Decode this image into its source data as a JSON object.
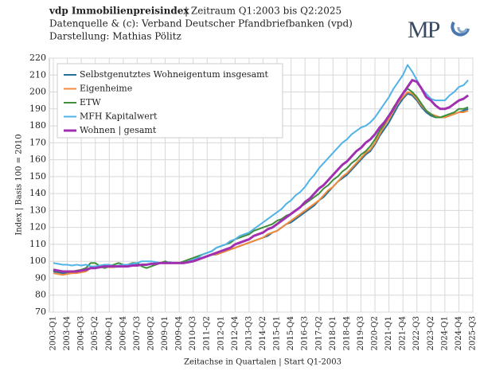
{
  "chart_data": {
    "type": "line",
    "title": "vdp Immobilienpreisindex",
    "title_suffix": "| Zeitraum Q1:2003 bis Q2:2025",
    "subtitle": [
      "Datenquelle & (c): Verband Deutscher Pfandbriefbanken (vpd)",
      "Darstellung: Mathias Pölitz"
    ],
    "logo": "MP",
    "ylabel": "Index | Basis 100 = 2010",
    "xlabel": "Zeitachse in Quartalen | Start Q1-2003",
    "categories": [
      "2003-Q1",
      null,
      null,
      "2003-Q4",
      null,
      null,
      "2004-Q3",
      null,
      null,
      "2005-Q2",
      null,
      null,
      "2006-Q1",
      null,
      null,
      "2006-Q4",
      null,
      null,
      "2007-Q3",
      null,
      null,
      "2008-Q2",
      null,
      null,
      "2009-Q1",
      null,
      null,
      "2009-Q4",
      null,
      null,
      "2010-Q3",
      null,
      null,
      "2011-Q2",
      null,
      null,
      "2012-Q1",
      null,
      null,
      "2012-Q4",
      null,
      null,
      "2013-Q3",
      null,
      null,
      "2014-Q2",
      null,
      null,
      "2015-Q1",
      null,
      null,
      "2015-Q4",
      null,
      null,
      "2016-Q3",
      null,
      null,
      "2017-Q2",
      null,
      null,
      "2018-Q1",
      null,
      null,
      "2018-Q4",
      null,
      null,
      "2019-Q3",
      null,
      null,
      "2020-Q2",
      null,
      null,
      "2021-Q1",
      null,
      null,
      "2021-Q4",
      null,
      null,
      "2022-Q3",
      null,
      null,
      "2023-Q2",
      null,
      null,
      "2024-Q1",
      null,
      null,
      "2024-Q4",
      null,
      null,
      "2025-Q3"
    ],
    "series": [
      {
        "name": "Selbstgenutztes Wohneigentum insgesamt",
        "color": "#2a6f97",
        "values": [
          94,
          93.5,
          93,
          93,
          93,
          93.5,
          94,
          95,
          96,
          96.5,
          97,
          97,
          97,
          97,
          97,
          97.5,
          97.5,
          98,
          98,
          98,
          98,
          98.5,
          99,
          99,
          99,
          99,
          99,
          99,
          99,
          99.5,
          100,
          101,
          102,
          103,
          104,
          104,
          105,
          106,
          107,
          108,
          109,
          110,
          111,
          112,
          113,
          114,
          115,
          117,
          118,
          120,
          122,
          123,
          125,
          127,
          129,
          131,
          133,
          136,
          138,
          141,
          144,
          147,
          149,
          151,
          154,
          157,
          160,
          163,
          165,
          169,
          174,
          178,
          182,
          187,
          192,
          196,
          199,
          198,
          195,
          191,
          188,
          186,
          185,
          185,
          185,
          186,
          187,
          188,
          189,
          190,
          null
        ]
      },
      {
        "name": "Eigenheime",
        "color": "#f08a3c",
        "values": [
          93,
          92.5,
          92,
          92.5,
          93,
          93,
          93.5,
          94,
          96,
          96,
          96.5,
          96.5,
          96.5,
          96.5,
          97,
          97,
          97,
          97.5,
          97.5,
          98,
          98,
          98.5,
          99,
          99,
          99,
          99,
          99,
          99,
          99,
          99.5,
          100,
          101,
          102,
          103,
          104,
          104,
          105,
          106,
          107,
          108,
          109,
          110,
          111,
          112,
          113,
          114,
          116,
          117,
          118,
          120,
          122,
          124,
          126,
          128,
          130,
          132,
          134,
          136,
          139,
          142,
          144,
          147,
          150,
          152,
          155,
          158,
          161,
          164,
          166,
          170,
          175,
          180,
          184,
          189,
          194,
          197,
          200,
          199,
          196,
          192,
          189,
          187,
          186,
          185,
          185,
          186,
          187,
          188,
          188,
          189,
          null
        ]
      },
      {
        "name": "ETW",
        "color": "#3e8e3a",
        "values": [
          95,
          94,
          94,
          93.5,
          94,
          94.5,
          95,
          96,
          99,
          99,
          97,
          96,
          97,
          98,
          99,
          98,
          98,
          99,
          99,
          97,
          96,
          97,
          98,
          99,
          100,
          99,
          99,
          99,
          100,
          101,
          102,
          103,
          104,
          105,
          106,
          108,
          109,
          110,
          111,
          113,
          114,
          115,
          116,
          118,
          119,
          120,
          121,
          122,
          124,
          125,
          127,
          128,
          130,
          132,
          134,
          136,
          138,
          140,
          143,
          145,
          148,
          150,
          153,
          155,
          158,
          160,
          163,
          165,
          168,
          172,
          177,
          181,
          186,
          191,
          195,
          199,
          202,
          200,
          197,
          193,
          189,
          187,
          185,
          185,
          186,
          187,
          188,
          190,
          190,
          191,
          null
        ]
      },
      {
        "name": "MFH Kapitalwert",
        "color": "#4fb3e8",
        "values": [
          99,
          98.5,
          98,
          98,
          97.5,
          98,
          97.5,
          98,
          97,
          97,
          97.5,
          98,
          98,
          97,
          97.5,
          98,
          98,
          98.5,
          99,
          100,
          100,
          100,
          99.5,
          99,
          99,
          99.5,
          99,
          99,
          99,
          100,
          101,
          102,
          104,
          105,
          106,
          108,
          109,
          110,
          112,
          113,
          115,
          116,
          117,
          119,
          121,
          123,
          125,
          127,
          129,
          131,
          134,
          136,
          139,
          141,
          144,
          148,
          151,
          155,
          158,
          161,
          164,
          167,
          170,
          172,
          175,
          177,
          179,
          180,
          182,
          185,
          189,
          193,
          197,
          202,
          206,
          210,
          216,
          212,
          207,
          202,
          199,
          196,
          195,
          195,
          195,
          198,
          200,
          203,
          204,
          207,
          null
        ]
      },
      {
        "name": "Wohnen | gesamt",
        "color": "#a030b0",
        "values": [
          95,
          94.5,
          94,
          94,
          94,
          94,
          94.5,
          95,
          96,
          96,
          96.5,
          97,
          97,
          97,
          97,
          97,
          97,
          97.5,
          97.5,
          98,
          98,
          98.5,
          98.5,
          99,
          99,
          99,
          99,
          99,
          99,
          99.5,
          100,
          101,
          102,
          103,
          104,
          105,
          106,
          107,
          108,
          110,
          111,
          112,
          113,
          115,
          116,
          117,
          119,
          120,
          122,
          124,
          126,
          128,
          130,
          132,
          135,
          137,
          140,
          143,
          145,
          148,
          151,
          154,
          157,
          159,
          162,
          165,
          167,
          170,
          172,
          175,
          179,
          182,
          186,
          190,
          195,
          199,
          203,
          207,
          206,
          202,
          197,
          195,
          192,
          190,
          190,
          191,
          193,
          195,
          196,
          198,
          null
        ]
      }
    ],
    "ylim": [
      70,
      220
    ],
    "yticks": [
      70,
      80,
      90,
      100,
      110,
      120,
      130,
      140,
      150,
      160,
      170,
      180,
      190,
      200,
      210,
      220
    ],
    "grid": true,
    "legend": "top-left"
  }
}
